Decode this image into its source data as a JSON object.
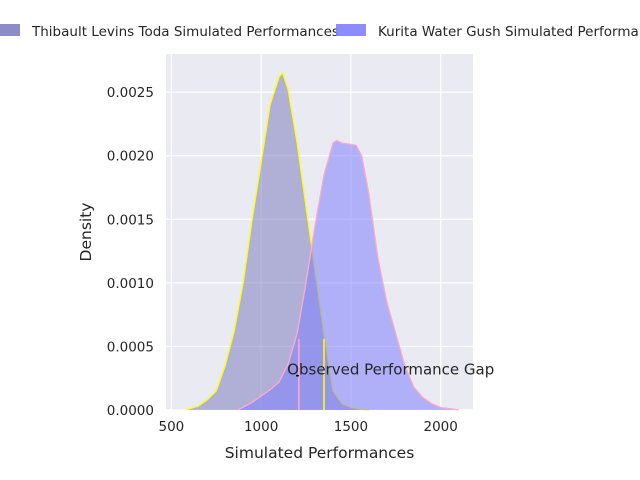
{
  "chart_data": {
    "type": "area",
    "xlabel": "Simulated Performances",
    "ylabel": "Density",
    "xlim": [
      470,
      2180
    ],
    "ylim": [
      0,
      0.0028
    ],
    "x_ticks": [
      500,
      1000,
      1500,
      2000
    ],
    "x_tick_labels": [
      "500",
      "1000",
      "1500",
      "2000"
    ],
    "y_ticks": [
      0,
      0.0005,
      0.001,
      0.0015,
      0.002,
      0.0025
    ],
    "y_tick_labels": [
      "0.0000",
      "0.0005",
      "0.0010",
      "0.0015",
      "0.0020",
      "0.0025"
    ],
    "grid": true,
    "legend": {
      "placement": "top-center-outside"
    },
    "series": [
      {
        "name": "Thibault Levins Toda Simulated Performances",
        "fill_color": "#8080c0",
        "line_color": "#ffff00",
        "x": [
          580,
          650,
          700,
          750,
          800,
          850,
          900,
          950,
          1000,
          1050,
          1100,
          1120,
          1150,
          1200,
          1250,
          1300,
          1350,
          1400,
          1450,
          1500,
          1550,
          1600
        ],
        "y": [
          0,
          3e-05,
          8e-05,
          0.00015,
          0.00035,
          0.00062,
          0.001,
          0.0015,
          0.00195,
          0.0024,
          0.00262,
          0.00265,
          0.00252,
          0.0021,
          0.0016,
          0.0011,
          0.0006,
          0.00015,
          5e-05,
          2e-05,
          5e-06,
          0
        ]
      },
      {
        "name": "Kurita Water Gush Simulated Performances",
        "fill_color": "#8080ff",
        "line_color": "#ffaac8",
        "x": [
          870,
          950,
          1000,
          1050,
          1100,
          1150,
          1200,
          1250,
          1300,
          1350,
          1400,
          1420,
          1450,
          1500,
          1530,
          1560,
          1600,
          1650,
          1700,
          1750,
          1800,
          1850,
          1900,
          1950,
          2000,
          2050,
          2100
        ],
        "y": [
          0,
          6e-05,
          0.00011,
          0.00016,
          0.00022,
          0.00036,
          0.0006,
          0.001,
          0.00145,
          0.00185,
          0.0021,
          0.00212,
          0.0021,
          0.00209,
          0.00208,
          0.002,
          0.0017,
          0.0012,
          0.00085,
          0.0006,
          0.00035,
          0.00018,
          0.0001,
          5e-05,
          2e-05,
          1e-05,
          0
        ]
      }
    ],
    "annotations": [
      {
        "text": "Observed Performance Gap",
        "text_x": 1145,
        "text_y": 0.00032,
        "markers": [
          {
            "x": 1210,
            "y0": 0,
            "y1": 0.00056,
            "color": "#ffaac8"
          },
          {
            "x": 1350,
            "y0": 0,
            "y1": 0.00056,
            "color": "#ffff00"
          }
        ],
        "bracket": {
          "x0": 1210,
          "x1": 1350,
          "y": 0.00027,
          "color": "#000000"
        }
      }
    ]
  }
}
